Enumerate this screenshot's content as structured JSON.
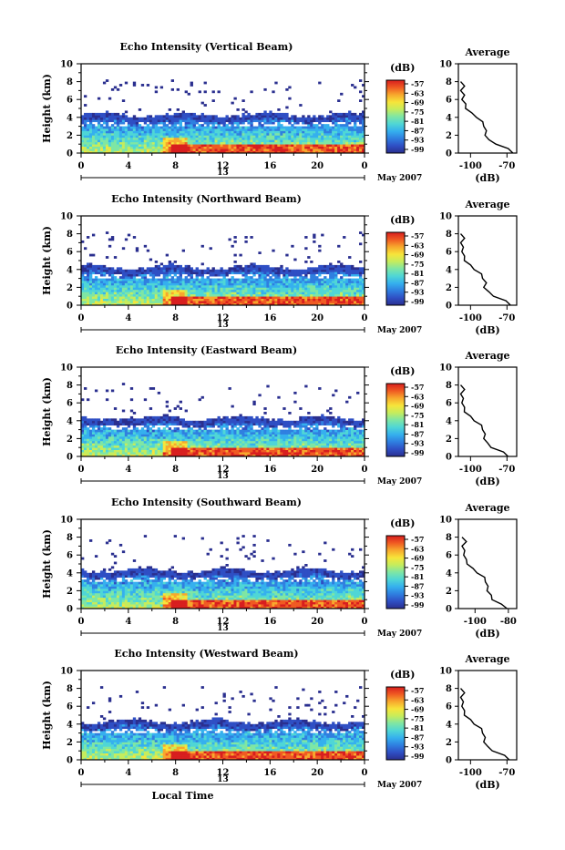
{
  "figure": {
    "xlabel_bottom": "Local Time",
    "date_label": "May 2007",
    "day_marker": "13",
    "colorbar_unit": "(dB)",
    "colorbar_ticks": [
      "-57",
      "-63",
      "-69",
      "-75",
      "-81",
      "-87",
      "-93",
      "-99"
    ],
    "colormap": [
      "#2a2f8f",
      "#2f4fc4",
      "#2f7fe0",
      "#35b0ee",
      "#4fd6d6",
      "#7fe6a4",
      "#c6ec5c",
      "#f7e43a",
      "#f7a82d",
      "#f05a22",
      "#d81e1e"
    ]
  },
  "chart_data": [
    {
      "type": "heatmap",
      "title": "Echo Intensity (Vertical Beam)",
      "ylabel": "Height (km)",
      "xlabel": "Local Time",
      "xticks": [
        "0",
        "4",
        "8",
        "12",
        "16",
        "20",
        "0"
      ],
      "yticks": [
        "0",
        "2",
        "4",
        "6",
        "8",
        "10"
      ],
      "xlim": [
        0,
        24
      ],
      "ylim": [
        0,
        10
      ],
      "profile": {
        "title": "Average",
        "xlabel": "(dB)",
        "xticks": [
          "-100",
          "-70"
        ],
        "xlim": [
          -110,
          -62
        ],
        "yticks": [
          "0",
          "2",
          "4",
          "6",
          "8",
          "10"
        ],
        "heights": [
          0.0,
          0.5,
          1.0,
          1.5,
          2.0,
          2.5,
          3.0,
          3.5,
          4.0,
          4.5,
          5.0,
          5.5,
          6.0,
          6.5,
          7.0,
          7.5,
          8.0
        ],
        "values": [
          -64,
          -70,
          -78,
          -86,
          -87,
          -88,
          -88,
          -91,
          -94,
          -100,
          -103,
          -105,
          -106,
          -106,
          -107,
          -106,
          -107
        ]
      }
    },
    {
      "type": "heatmap",
      "title": "Echo Intensity (Northward Beam)",
      "ylabel": "Height (km)",
      "xlabel": "Local Time",
      "xticks": [
        "0",
        "4",
        "8",
        "12",
        "16",
        "20",
        "0"
      ],
      "yticks": [
        "0",
        "2",
        "4",
        "6",
        "8",
        "10"
      ],
      "xlim": [
        0,
        24
      ],
      "ylim": [
        0,
        10
      ],
      "profile": {
        "title": "Average",
        "xlabel": "(dB)",
        "xticks": [
          "-100",
          "-70"
        ],
        "xlim": [
          -110,
          -62
        ],
        "yticks": [
          "0",
          "2",
          "4",
          "6",
          "8",
          "10"
        ],
        "heights": [
          0.0,
          0.5,
          1.0,
          1.5,
          2.0,
          2.5,
          3.0,
          3.5,
          4.0,
          4.5,
          5.0,
          5.5,
          6.0,
          6.5,
          7.0,
          7.5,
          8.0
        ],
        "values": [
          -66,
          -72,
          -80,
          -86,
          -88,
          -88,
          -89,
          -92,
          -96,
          -101,
          -104,
          -106,
          -106,
          -107,
          -107,
          -106,
          -107
        ]
      }
    },
    {
      "type": "heatmap",
      "title": "Echo Intensity (Eastward Beam)",
      "ylabel": "Height (km)",
      "xlabel": "Local Time",
      "xticks": [
        "0",
        "4",
        "8",
        "12",
        "16",
        "20",
        "0"
      ],
      "yticks": [
        "0",
        "2",
        "4",
        "6",
        "8",
        "10"
      ],
      "xlim": [
        0,
        24
      ],
      "ylim": [
        0,
        10
      ],
      "profile": {
        "title": "Average",
        "xlabel": "(dB)",
        "xticks": [
          "-100",
          "-70"
        ],
        "xlim": [
          -110,
          -62
        ],
        "yticks": [
          "0",
          "2",
          "4",
          "6",
          "8",
          "10"
        ],
        "heights": [
          0.0,
          0.5,
          1.0,
          1.5,
          2.0,
          2.5,
          3.0,
          3.5,
          4.0,
          4.5,
          5.0,
          5.5,
          6.0,
          6.5,
          7.0,
          7.5,
          8.0
        ],
        "values": [
          -68,
          -74,
          -82,
          -87,
          -88,
          -89,
          -89,
          -92,
          -96,
          -101,
          -104,
          -106,
          -106,
          -107,
          -107,
          -106,
          -107
        ]
      }
    },
    {
      "type": "heatmap",
      "title": "Echo Intensity (Southward Beam)",
      "ylabel": "Height (km)",
      "xlabel": "Local Time",
      "xticks": [
        "0",
        "4",
        "8",
        "12",
        "16",
        "20",
        "0"
      ],
      "yticks": [
        "0",
        "2",
        "4",
        "6",
        "8",
        "10"
      ],
      "xlim": [
        0,
        24
      ],
      "ylim": [
        0,
        10
      ],
      "profile": {
        "title": "Average",
        "xlabel": "(dB)",
        "xticks": [
          "-100",
          "-80"
        ],
        "xlim": [
          -110,
          -75
        ],
        "yticks": [
          "0",
          "2",
          "4",
          "6",
          "8",
          "10"
        ],
        "heights": [
          0.0,
          0.5,
          1.0,
          1.5,
          2.0,
          2.5,
          3.0,
          3.5,
          4.0,
          4.5,
          5.0,
          5.5,
          6.0,
          6.5,
          7.0,
          7.5,
          8.0
        ],
        "values": [
          -80,
          -85,
          -89,
          -91,
          -92,
          -93,
          -93,
          -95,
          -98,
          -102,
          -104,
          -106,
          -106,
          -107,
          -107,
          -106,
          -107
        ]
      }
    },
    {
      "type": "heatmap",
      "title": "Echo Intensity (Westward Beam)",
      "ylabel": "Height (km)",
      "xlabel": "Local Time",
      "xticks": [
        "0",
        "4",
        "8",
        "12",
        "16",
        "20",
        "0"
      ],
      "yticks": [
        "0",
        "2",
        "4",
        "6",
        "8",
        "10"
      ],
      "xlim": [
        0,
        24
      ],
      "ylim": [
        0,
        10
      ],
      "profile": {
        "title": "Average",
        "xlabel": "(dB)",
        "xticks": [
          "-100",
          "-70"
        ],
        "xlim": [
          -110,
          -62
        ],
        "yticks": [
          "0",
          "2",
          "4",
          "6",
          "8",
          "10"
        ],
        "heights": [
          0.0,
          0.5,
          1.0,
          1.5,
          2.0,
          2.5,
          3.0,
          3.5,
          4.0,
          4.5,
          5.0,
          5.5,
          6.0,
          6.5,
          7.0,
          7.5,
          8.0
        ],
        "values": [
          -67,
          -73,
          -81,
          -87,
          -88,
          -89,
          -89,
          -92,
          -96,
          -101,
          -104,
          -106,
          -106,
          -107,
          -107,
          -106,
          -107
        ]
      }
    }
  ]
}
